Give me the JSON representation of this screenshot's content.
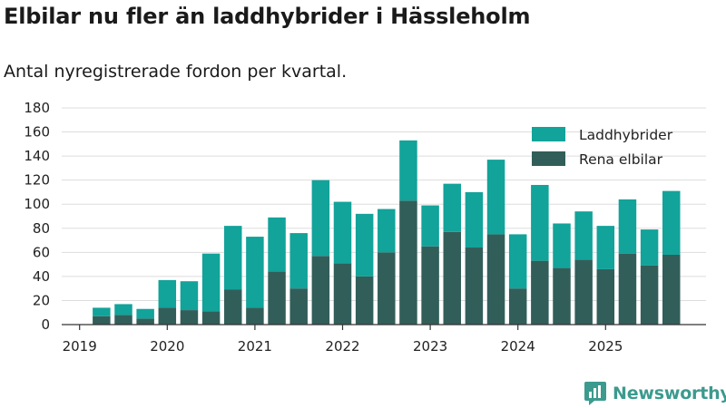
{
  "header": {
    "title": "Elbilar nu fler än laddhybrider i Hässleholm",
    "subtitle": "Antal nyregistrerade fordon per kvartal."
  },
  "brand": {
    "name": "Newsworthy"
  },
  "colors": {
    "hybrid": "#12a39a",
    "electric": "#325e5a",
    "grid": "#dddddd",
    "axis": "#333333"
  },
  "chart_data": {
    "type": "bar",
    "stacked": true,
    "title": "Elbilar nu fler än laddhybrider i Hässleholm",
    "subtitle": "Antal nyregistrerade fordon per kvartal.",
    "xlabel": "",
    "ylabel": "",
    "ylim": [
      0,
      180
    ],
    "yticks": [
      0,
      20,
      40,
      60,
      80,
      100,
      120,
      140,
      160,
      180
    ],
    "grid": true,
    "legend_position": "top-right",
    "year_labels": [
      "2019",
      "2020",
      "2021",
      "2022",
      "2023",
      "2024",
      "2025"
    ],
    "categories": [
      "2019-Q1",
      "2019-Q2",
      "2019-Q3",
      "2019-Q4",
      "2020-Q1",
      "2020-Q2",
      "2020-Q3",
      "2020-Q4",
      "2021-Q1",
      "2021-Q2",
      "2021-Q3",
      "2021-Q4",
      "2022-Q1",
      "2022-Q2",
      "2022-Q3",
      "2022-Q4",
      "2023-Q1",
      "2023-Q2",
      "2023-Q3",
      "2023-Q4",
      "2024-Q1",
      "2024-Q2",
      "2024-Q3",
      "2024-Q4",
      "2025-Q1",
      "2025-Q2",
      "2025-Q3",
      "2025-Q4"
    ],
    "series": [
      {
        "name": "Rena elbilar",
        "values": [
          0,
          7,
          8,
          5,
          14,
          12,
          11,
          29,
          14,
          44,
          30,
          57,
          51,
          40,
          60,
          103,
          65,
          77,
          64,
          75,
          30,
          53,
          47,
          54,
          46,
          59,
          49,
          58
        ]
      },
      {
        "name": "Laddhybrider",
        "values": [
          0,
          7,
          9,
          8,
          23,
          24,
          48,
          53,
          59,
          45,
          46,
          63,
          51,
          52,
          36,
          50,
          34,
          40,
          46,
          62,
          45,
          63,
          37,
          40,
          36,
          45,
          30,
          53
        ]
      }
    ]
  }
}
